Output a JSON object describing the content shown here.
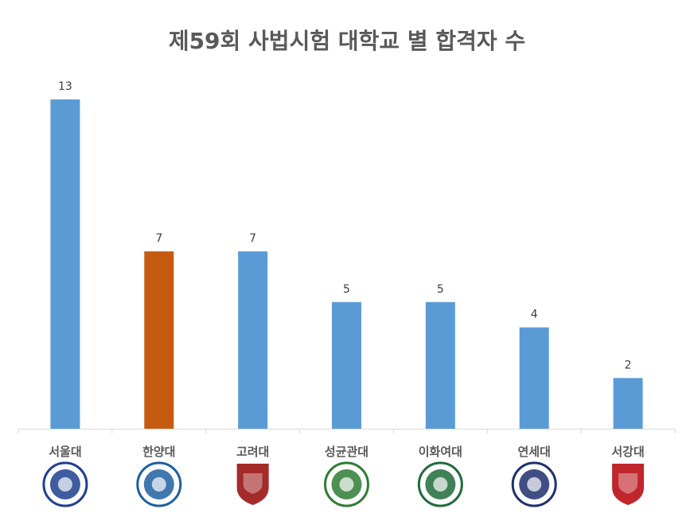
{
  "chart_data": {
    "type": "bar",
    "title": "제59회 사법시험 대학교 별 합격자 수",
    "categories": [
      "서울대",
      "한양대",
      "고려대",
      "성균관대",
      "이화여대",
      "연세대",
      "서강대"
    ],
    "values": [
      13,
      7,
      7,
      5,
      5,
      4,
      2
    ],
    "data_labels": [
      "13",
      "7",
      "7",
      "5",
      "5",
      "4",
      "2"
    ],
    "ylim": [
      0,
      13
    ],
    "grid": false,
    "legend": "none",
    "colors": {
      "default": "#5B9BD5",
      "highlight": "#C55A11",
      "highlight_category": "한양대"
    },
    "logo_colors": [
      "#1F3F8F",
      "#1F5FA0",
      "#A52A2A",
      "#2E7D32",
      "#1E6B3A",
      "#1F2F6F",
      "#C0272D"
    ]
  }
}
